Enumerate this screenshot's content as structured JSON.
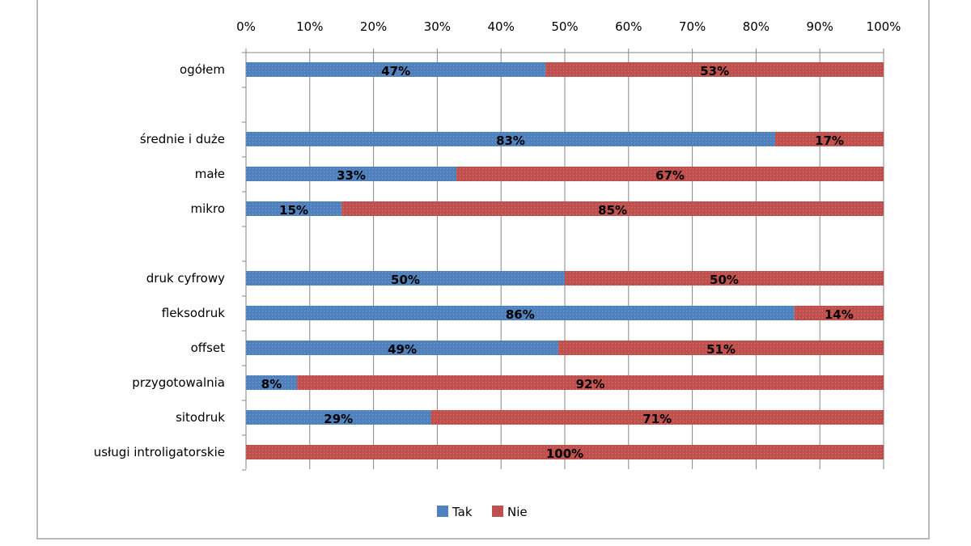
{
  "chart_data": {
    "type": "bar",
    "orientation": "horizontal",
    "stacked": "percent",
    "categories": [
      "ogółem",
      "",
      "średnie i duże",
      "małe",
      "mikro",
      "",
      "druk cyfrowy",
      "fleksodruk",
      "offset",
      "przygotowalnia",
      "sitodruk",
      "usługi introligatorskie"
    ],
    "series": [
      {
        "name": "Tak",
        "color": "#4f81bd",
        "values": [
          47,
          null,
          83,
          33,
          15,
          null,
          50,
          86,
          49,
          8,
          29,
          0
        ],
        "labels": [
          "47%",
          "",
          "83%",
          "33%",
          "15%",
          "",
          "50%",
          "86%",
          "49%",
          "8%",
          "29%",
          ""
        ]
      },
      {
        "name": "Nie",
        "color": "#c0504d",
        "values": [
          53,
          null,
          17,
          67,
          85,
          null,
          50,
          14,
          51,
          92,
          71,
          100
        ],
        "labels": [
          "53%",
          "",
          "17%",
          "67%",
          "85%",
          "",
          "50%",
          "14%",
          "51%",
          "92%",
          "71%",
          "100%"
        ]
      }
    ],
    "xaxis": {
      "ticks": [
        "0%",
        "10%",
        "20%",
        "30%",
        "40%",
        "50%",
        "60%",
        "70%",
        "80%",
        "90%",
        "100%"
      ],
      "range": [
        0,
        100
      ],
      "position": "top"
    },
    "grid": true,
    "legend": {
      "position": "bottom",
      "entries": [
        "Tak",
        "Nie"
      ]
    },
    "title": ""
  }
}
